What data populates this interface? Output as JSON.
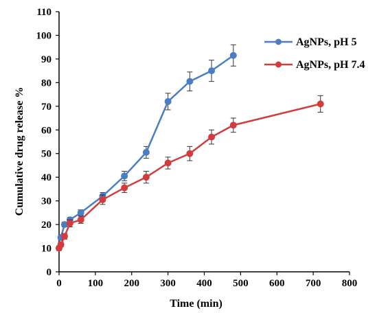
{
  "chart_data": {
    "type": "line",
    "title": "",
    "xlabel": "Time  (min)",
    "ylabel": "Cumulative  drug release %",
    "xlim": [
      0,
      800
    ],
    "ylim": [
      0,
      110
    ],
    "xticks": [
      0,
      100,
      200,
      300,
      400,
      500,
      600,
      700,
      800
    ],
    "yticks": [
      0,
      10,
      20,
      30,
      40,
      50,
      60,
      70,
      80,
      90,
      100,
      110
    ],
    "grid": false,
    "legend_position": "top-right",
    "series": [
      {
        "name": "AgNPs, pH 5",
        "color": "#4a7ec2",
        "x": [
          5,
          15,
          30,
          60,
          120,
          180,
          240,
          300,
          360,
          420,
          480
        ],
        "y": [
          14.5,
          20,
          22,
          25,
          32,
          40.5,
          50.5,
          72,
          80.5,
          85,
          91.5
        ],
        "err": [
          1,
          1,
          1,
          1.2,
          1.5,
          2,
          2.5,
          3.5,
          4,
          4.5,
          4.5
        ]
      },
      {
        "name": "AgNPs, pH 7.4",
        "color": "#d23c3c",
        "x": [
          0,
          5,
          15,
          30,
          60,
          120,
          180,
          240,
          300,
          360,
          420,
          480,
          720
        ],
        "y": [
          10,
          11.5,
          15,
          20.5,
          22,
          30.5,
          35.5,
          40,
          46,
          50,
          57,
          62,
          71
        ],
        "err": [
          1,
          1,
          1.2,
          1.5,
          1.5,
          2,
          2,
          2.5,
          2.5,
          3,
          3,
          3,
          3.5
        ]
      }
    ]
  }
}
